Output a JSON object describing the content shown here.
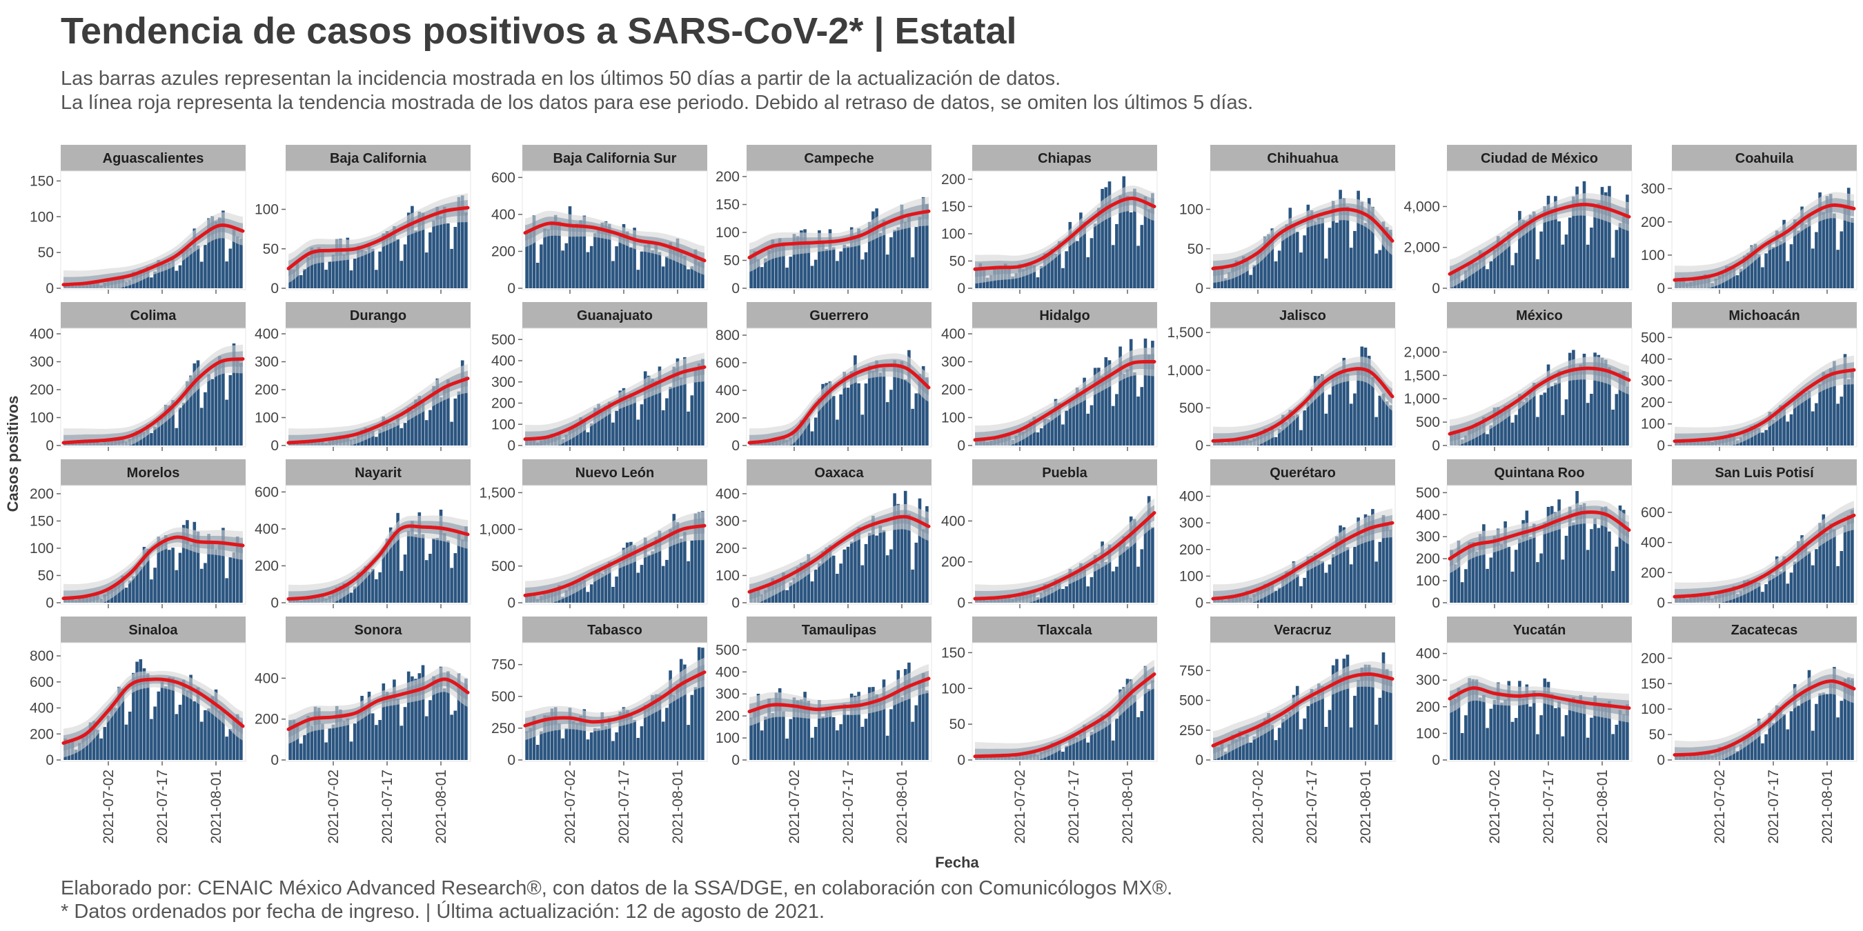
{
  "header": {
    "title": "Tendencia de casos positivos a SARS-CoV-2* | Estatal",
    "subtitle_1": "Las barras azules representan la incidencia mostrada en los últimos 50 días a partir de la actualización de datos.",
    "subtitle_2": "La línea roja representa la tendencia mostrada de los datos para ese periodo. Debido al retraso de datos, se omiten los últimos 5 días."
  },
  "footer": {
    "caption_1": "Elaborado por: CENAIC México Advanced Research®, con datos de la SSA/DGE, en colaboración con Comunicólogos MX®.",
    "caption_2": "* Datos ordenados por fecha de ingreso. | Última actualización: 12 de agosto de 2021."
  },
  "colors": {
    "bar": "#2b5580",
    "trend_line": "#e0161b",
    "band_outer": "#d6d6d6",
    "band_inner": "#7d8fa2",
    "strip_bg": "#b3b3b3"
  },
  "chart_data": {
    "type": "bar",
    "xlabel": "Fecha",
    "ylabel": "Casos positivos",
    "x_ticks": [
      "2021-07-02",
      "2021-07-17",
      "2021-08-01"
    ],
    "x_range": [
      "2021-06-20",
      "2021-08-08"
    ],
    "panels": [
      {
        "name": "Aguascalientes",
        "yticks": [
          0,
          50,
          100,
          150
        ],
        "ytick_labels": [
          "0",
          "50",
          "100",
          "150"
        ],
        "ymax": 160,
        "trend": [
          5,
          7,
          12,
          18,
          30,
          45,
          70,
          88,
          80
        ]
      },
      {
        "name": "Baja California",
        "yticks": [
          0,
          50,
          100
        ],
        "ytick_labels": [
          "0",
          "50",
          "100"
        ],
        "ymax": 145,
        "trend": [
          25,
          45,
          48,
          50,
          60,
          75,
          88,
          98,
          102
        ]
      },
      {
        "name": "Baja California Sur",
        "yticks": [
          0,
          200,
          400,
          600
        ],
        "ytick_labels": [
          "0",
          "200",
          "400",
          "600"
        ],
        "ymax": 620,
        "trend": [
          300,
          350,
          340,
          330,
          300,
          260,
          240,
          200,
          150
        ]
      },
      {
        "name": "Campeche",
        "yticks": [
          0,
          50,
          100,
          150,
          200
        ],
        "ytick_labels": [
          "0",
          "50",
          "100",
          "150",
          "200"
        ],
        "ymax": 205,
        "trend": [
          55,
          75,
          80,
          82,
          85,
          95,
          115,
          130,
          138
        ]
      },
      {
        "name": "Chiapas",
        "yticks": [
          0,
          50,
          100,
          150,
          200
        ],
        "ytick_labels": [
          "0",
          "50",
          "100",
          "150",
          "200"
        ],
        "ymax": 210,
        "trend": [
          35,
          38,
          40,
          55,
          85,
          120,
          150,
          165,
          150
        ]
      },
      {
        "name": "Chihuahua",
        "yticks": [
          0,
          50,
          100
        ],
        "ytick_labels": [
          "0",
          "50",
          "100"
        ],
        "ymax": 145,
        "trend": [
          25,
          30,
          45,
          70,
          85,
          95,
          100,
          90,
          60
        ]
      },
      {
        "name": "Ciudad de México",
        "yticks": [
          0,
          2000,
          4000
        ],
        "ytick_labels": [
          "0",
          "2,000",
          "4,000"
        ],
        "ymax": 5600,
        "trend": [
          700,
          1300,
          2000,
          2800,
          3500,
          3900,
          4100,
          3900,
          3500
        ]
      },
      {
        "name": "Coahuila",
        "yticks": [
          0,
          100,
          200,
          300
        ],
        "ytick_labels": [
          "0",
          "100",
          "200",
          "300"
        ],
        "ymax": 345,
        "trend": [
          25,
          30,
          45,
          80,
          130,
          170,
          220,
          250,
          240
        ]
      },
      {
        "name": "Colima",
        "yticks": [
          0,
          100,
          200,
          300,
          400
        ],
        "ytick_labels": [
          "0",
          "100",
          "200",
          "300",
          "400"
        ],
        "ymax": 410,
        "trend": [
          10,
          15,
          20,
          35,
          80,
          150,
          240,
          300,
          310
        ]
      },
      {
        "name": "Durango",
        "yticks": [
          0,
          100,
          200,
          300,
          400
        ],
        "ytick_labels": [
          "0",
          "100",
          "200",
          "300",
          "400"
        ],
        "ymax": 410,
        "trend": [
          10,
          15,
          25,
          40,
          70,
          110,
          160,
          210,
          240
        ]
      },
      {
        "name": "Guanajuato",
        "yticks": [
          0,
          100,
          200,
          300,
          400,
          500
        ],
        "ytick_labels": [
          "0",
          "100",
          "200",
          "300",
          "400",
          "500"
        ],
        "ymax": 540,
        "trend": [
          30,
          40,
          80,
          140,
          200,
          250,
          300,
          345,
          370
        ]
      },
      {
        "name": "Guerrero",
        "yticks": [
          0,
          200,
          400,
          600,
          800
        ],
        "ytick_labels": [
          "0",
          "200",
          "400",
          "600",
          "800"
        ],
        "ymax": 830,
        "trend": [
          20,
          40,
          100,
          300,
          450,
          540,
          580,
          560,
          420
        ]
      },
      {
        "name": "Hidalgo",
        "yticks": [
          0,
          100,
          200,
          300,
          400
        ],
        "ytick_labels": [
          "0",
          "100",
          "200",
          "300",
          "400"
        ],
        "ymax": 410,
        "trend": [
          20,
          30,
          55,
          100,
          150,
          200,
          250,
          295,
          300
        ]
      },
      {
        "name": "Jalisco",
        "yticks": [
          0,
          500,
          1000,
          1500
        ],
        "ytick_labels": [
          "0",
          "500",
          "1,000",
          "1,500"
        ],
        "ymax": 1520,
        "trend": [
          60,
          80,
          150,
          300,
          550,
          850,
          1000,
          980,
          650
        ]
      },
      {
        "name": "México",
        "yticks": [
          0,
          500,
          1000,
          1500,
          2000
        ],
        "ytick_labels": [
          "0",
          "500",
          "1,000",
          "1,500",
          "2,000"
        ],
        "ymax": 2450,
        "trend": [
          250,
          400,
          650,
          950,
          1300,
          1550,
          1650,
          1600,
          1400
        ]
      },
      {
        "name": "Michoacán",
        "yticks": [
          0,
          100,
          200,
          300,
          400,
          500
        ],
        "ytick_labels": [
          "0",
          "100",
          "200",
          "300",
          "400",
          "500"
        ],
        "ymax": 530,
        "trend": [
          20,
          25,
          35,
          60,
          110,
          190,
          270,
          330,
          350
        ]
      },
      {
        "name": "Morelos",
        "yticks": [
          0,
          50,
          100,
          150,
          200
        ],
        "ytick_labels": [
          "0",
          "50",
          "100",
          "150",
          "200"
        ],
        "ymax": 210,
        "trend": [
          8,
          12,
          25,
          55,
          100,
          120,
          112,
          110,
          105
        ]
      },
      {
        "name": "Nayarit",
        "yticks": [
          0,
          200,
          400,
          600
        ],
        "ytick_labels": [
          "0",
          "200",
          "400",
          "600"
        ],
        "ymax": 620,
        "trend": [
          20,
          30,
          60,
          130,
          250,
          400,
          410,
          400,
          370
        ]
      },
      {
        "name": "Nuevo León",
        "yticks": [
          0,
          500,
          1000,
          1500
        ],
        "ytick_labels": [
          "0",
          "500",
          "1,000",
          "1,500"
        ],
        "ymax": 1560,
        "trend": [
          100,
          150,
          250,
          400,
          550,
          700,
          850,
          1000,
          1050
        ]
      },
      {
        "name": "Oaxaca",
        "yticks": [
          0,
          100,
          200,
          300,
          400
        ],
        "ytick_labels": [
          "0",
          "100",
          "200",
          "300",
          "400"
        ],
        "ymax": 420,
        "trend": [
          40,
          70,
          110,
          160,
          220,
          270,
          300,
          315,
          280
        ]
      },
      {
        "name": "Puebla",
        "yticks": [
          0,
          200,
          400
        ],
        "ytick_labels": [
          "0",
          "200",
          "400"
        ],
        "ymax": 560,
        "trend": [
          20,
          25,
          40,
          70,
          120,
          180,
          250,
          340,
          440
        ]
      },
      {
        "name": "Querétaro",
        "yticks": [
          0,
          100,
          200,
          300,
          400
        ],
        "ytick_labels": [
          "0",
          "100",
          "200",
          "300",
          "400"
        ],
        "ymax": 430,
        "trend": [
          15,
          25,
          50,
          90,
          140,
          190,
          240,
          280,
          300
        ]
      },
      {
        "name": "Quintana Roo",
        "yticks": [
          0,
          100,
          200,
          300,
          400,
          500
        ],
        "ytick_labels": [
          "0",
          "100",
          "200",
          "300",
          "400",
          "500"
        ],
        "ymax": 520,
        "trend": [
          200,
          260,
          280,
          310,
          340,
          380,
          410,
          400,
          330
        ]
      },
      {
        "name": "San Luis Potisí",
        "yticks": [
          0,
          200,
          400,
          600
        ],
        "ytick_labels": [
          "0",
          "200",
          "400",
          "600"
        ],
        "ymax": 760,
        "trend": [
          40,
          50,
          70,
          110,
          180,
          280,
          400,
          510,
          580
        ]
      },
      {
        "name": "Sinaloa",
        "yticks": [
          0,
          200,
          400,
          600,
          800
        ],
        "ytick_labels": [
          "0",
          "200",
          "400",
          "600",
          "800"
        ],
        "ymax": 880,
        "trend": [
          130,
          200,
          380,
          580,
          620,
          600,
          520,
          400,
          260
        ]
      },
      {
        "name": "Sonora",
        "yticks": [
          0,
          200,
          400
        ],
        "ytick_labels": [
          "0",
          "200",
          "400"
        ],
        "ymax": 560,
        "trend": [
          150,
          200,
          210,
          230,
          290,
          320,
          350,
          395,
          330
        ]
      },
      {
        "name": "Tabasco",
        "yticks": [
          0,
          250,
          500,
          750
        ],
        "ytick_labels": [
          "0",
          "250",
          "500",
          "750"
        ],
        "ymax": 900,
        "trend": [
          270,
          320,
          330,
          300,
          320,
          380,
          480,
          600,
          690
        ]
      },
      {
        "name": "Tamaulipas",
        "yticks": [
          0,
          100,
          200,
          300,
          400,
          500
        ],
        "ytick_labels": [
          "0",
          "100",
          "200",
          "300",
          "400",
          "500"
        ],
        "ymax": 520,
        "trend": [
          220,
          250,
          245,
          230,
          240,
          250,
          280,
          330,
          370
        ]
      },
      {
        "name": "Tlaxcala",
        "yticks": [
          0,
          50,
          100,
          150
        ],
        "ytick_labels": [
          "0",
          "50",
          "100",
          "150"
        ],
        "ymax": 160,
        "trend": [
          5,
          6,
          8,
          15,
          28,
          45,
          65,
          95,
          120
        ]
      },
      {
        "name": "Veracruz",
        "yticks": [
          0,
          250,
          500,
          750
        ],
        "ytick_labels": [
          "0",
          "250",
          "500",
          "750"
        ],
        "ymax": 960,
        "trend": [
          120,
          200,
          280,
          380,
          500,
          600,
          690,
          720,
          680
        ]
      },
      {
        "name": "Yucatán",
        "yticks": [
          0,
          100,
          200,
          300,
          400
        ],
        "ytick_labels": [
          "0",
          "100",
          "200",
          "300",
          "400"
        ],
        "ymax": 430,
        "trend": [
          230,
          270,
          250,
          240,
          245,
          230,
          215,
          205,
          195
        ]
      },
      {
        "name": "Zacatecas",
        "yticks": [
          0,
          50,
          100,
          150,
          200
        ],
        "ytick_labels": [
          "0",
          "50",
          "100",
          "150",
          "200"
        ],
        "ymax": 225,
        "trend": [
          10,
          12,
          20,
          40,
          70,
          110,
          140,
          155,
          140
        ]
      }
    ]
  }
}
